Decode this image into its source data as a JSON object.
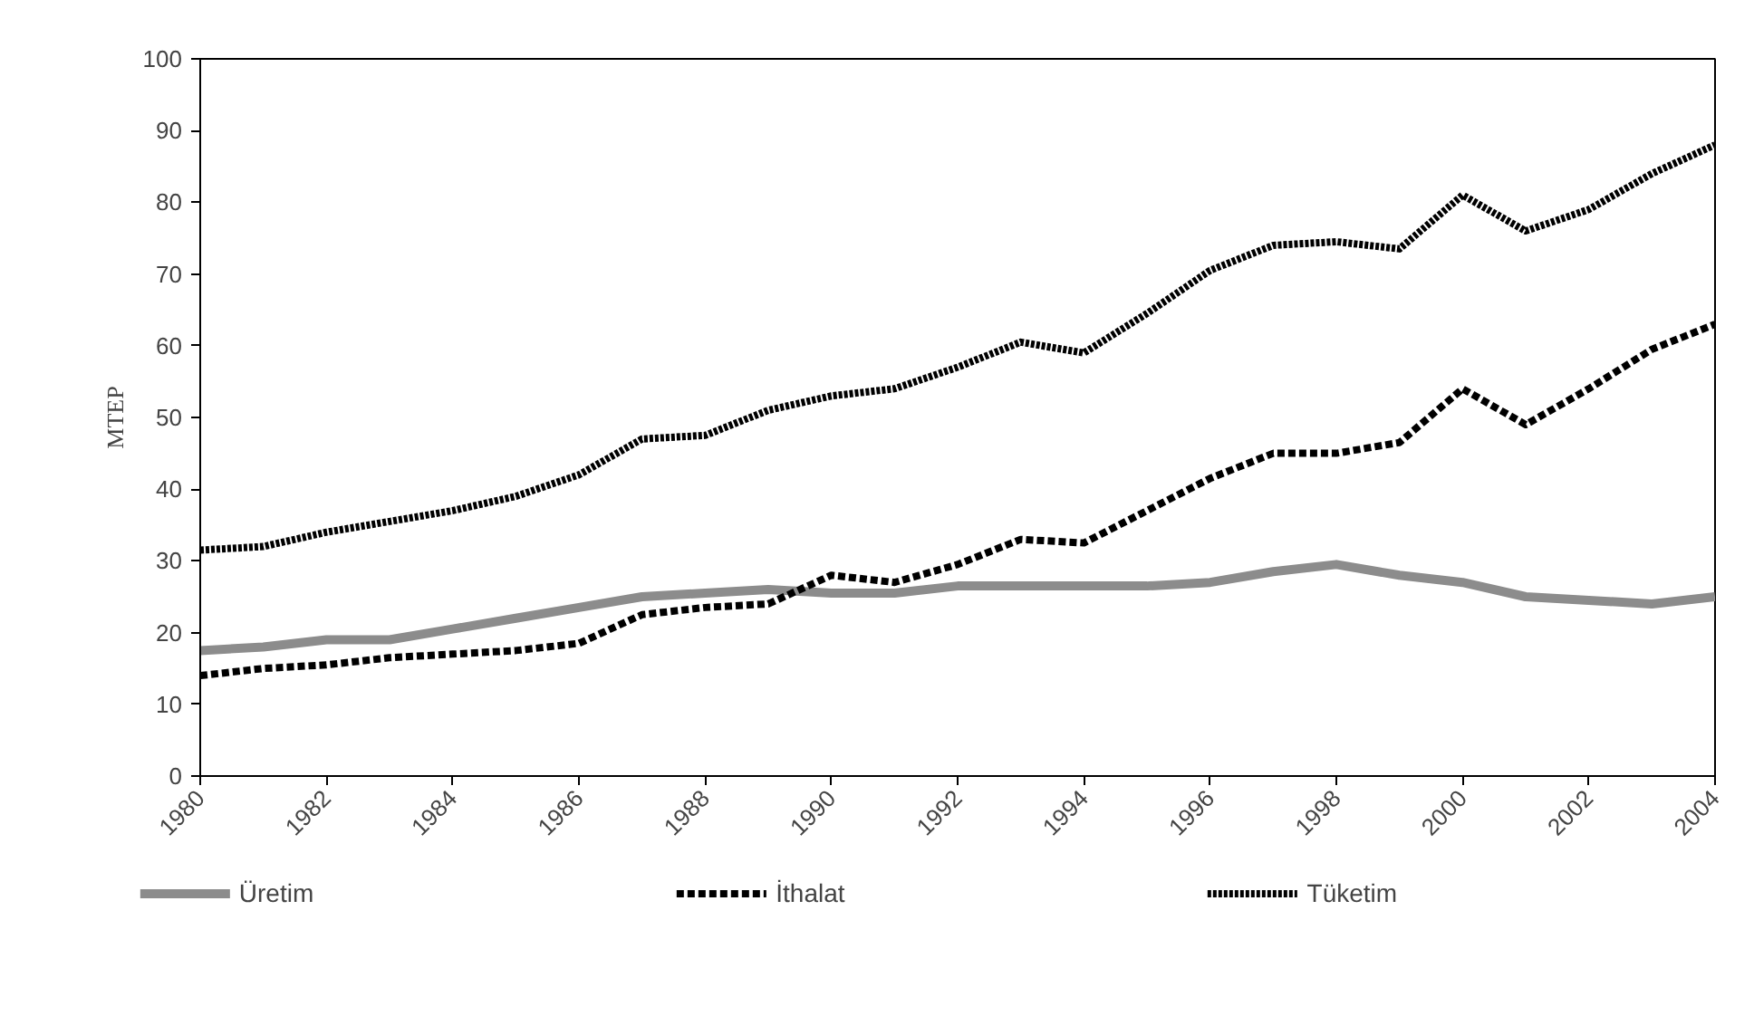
{
  "chart_data": {
    "type": "line",
    "ylabel": "MTEP",
    "x": [
      1980,
      1981,
      1982,
      1983,
      1984,
      1985,
      1986,
      1987,
      1988,
      1989,
      1990,
      1991,
      1992,
      1993,
      1994,
      1995,
      1996,
      1997,
      1998,
      1999,
      2000,
      2001,
      2002,
      2003,
      2004
    ],
    "series": [
      {
        "name": "Üretim",
        "color": "#8c8c8c",
        "line_style": "solid",
        "values": [
          17.5,
          18,
          19,
          19,
          20.5,
          22,
          23.5,
          25,
          25.5,
          26,
          25.5,
          25.5,
          26.5,
          26.5,
          26.5,
          26.5,
          27,
          28.5,
          29.5,
          28,
          27,
          25,
          24.5,
          24,
          25
        ]
      },
      {
        "name": "İthalat",
        "color": "#000000",
        "line_style": "dashed",
        "values": [
          14,
          15,
          15.5,
          16.5,
          17,
          17.5,
          18.5,
          22.5,
          23.5,
          24,
          28,
          27,
          29.5,
          33,
          32.5,
          37,
          41.5,
          45,
          45,
          46.5,
          54,
          49,
          54,
          59.5,
          63
        ]
      },
      {
        "name": "Tüketim",
        "color": "#000000",
        "line_style": "dotted",
        "values": [
          31.5,
          32,
          34,
          35.5,
          37,
          39,
          42,
          47,
          47.5,
          51,
          53,
          54,
          57,
          60.5,
          59,
          64.5,
          70.5,
          74,
          74.5,
          73.5,
          81,
          76,
          79,
          84,
          88
        ]
      }
    ],
    "xlim": [
      1980,
      2004
    ],
    "xticks": [
      1980,
      1982,
      1984,
      1986,
      1988,
      1990,
      1992,
      1994,
      1996,
      1998,
      2000,
      2002,
      2004
    ],
    "ylim": [
      0,
      100
    ],
    "yticks": [
      0,
      10,
      20,
      30,
      40,
      50,
      60,
      70,
      80,
      90,
      100
    ],
    "grid": false,
    "legend": "bottom",
    "marker": "none"
  }
}
